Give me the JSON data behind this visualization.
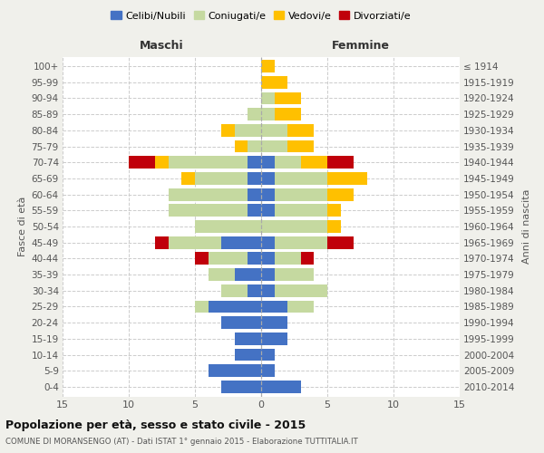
{
  "age_groups": [
    "0-4",
    "5-9",
    "10-14",
    "15-19",
    "20-24",
    "25-29",
    "30-34",
    "35-39",
    "40-44",
    "45-49",
    "50-54",
    "55-59",
    "60-64",
    "65-69",
    "70-74",
    "75-79",
    "80-84",
    "85-89",
    "90-94",
    "95-99",
    "100+"
  ],
  "birth_years": [
    "2010-2014",
    "2005-2009",
    "2000-2004",
    "1995-1999",
    "1990-1994",
    "1985-1989",
    "1980-1984",
    "1975-1979",
    "1970-1974",
    "1965-1969",
    "1960-1964",
    "1955-1959",
    "1950-1954",
    "1945-1949",
    "1940-1944",
    "1935-1939",
    "1930-1934",
    "1925-1929",
    "1920-1924",
    "1915-1919",
    "≤ 1914"
  ],
  "male": {
    "celibi": [
      3,
      4,
      2,
      2,
      3,
      4,
      1,
      2,
      1,
      3,
      0,
      1,
      1,
      1,
      1,
      0,
      0,
      0,
      0,
      0,
      0
    ],
    "coniugati": [
      0,
      0,
      0,
      0,
      0,
      1,
      2,
      2,
      3,
      4,
      5,
      6,
      6,
      4,
      6,
      1,
      2,
      1,
      0,
      0,
      0
    ],
    "vedovi": [
      0,
      0,
      0,
      0,
      0,
      0,
      0,
      0,
      0,
      0,
      0,
      0,
      0,
      1,
      1,
      1,
      1,
      0,
      0,
      0,
      0
    ],
    "divorziati": [
      0,
      0,
      0,
      0,
      0,
      0,
      0,
      0,
      1,
      1,
      0,
      0,
      0,
      0,
      2,
      0,
      0,
      0,
      0,
      0,
      0
    ]
  },
  "female": {
    "nubili": [
      3,
      1,
      1,
      2,
      2,
      2,
      1,
      1,
      1,
      1,
      0,
      1,
      1,
      1,
      1,
      0,
      0,
      0,
      0,
      0,
      0
    ],
    "coniugate": [
      0,
      0,
      0,
      0,
      0,
      2,
      4,
      3,
      2,
      4,
      5,
      4,
      4,
      4,
      2,
      2,
      2,
      1,
      1,
      0,
      0
    ],
    "vedove": [
      0,
      0,
      0,
      0,
      0,
      0,
      0,
      0,
      0,
      0,
      1,
      1,
      2,
      3,
      2,
      2,
      2,
      2,
      2,
      2,
      1
    ],
    "divorziate": [
      0,
      0,
      0,
      0,
      0,
      0,
      0,
      0,
      1,
      2,
      0,
      0,
      0,
      0,
      2,
      0,
      0,
      0,
      0,
      0,
      0
    ]
  },
  "colors": {
    "celibi": "#4472c4",
    "coniugati": "#c5d9a0",
    "vedovi": "#ffc000",
    "divorziati": "#c0000b"
  },
  "xlim": 15,
  "title": "Popolazione per età, sesso e stato civile - 2015",
  "subtitle": "COMUNE DI MORANSENGO (AT) - Dati ISTAT 1° gennaio 2015 - Elaborazione TUTTITALIA.IT",
  "ylabel_left": "Fasce di età",
  "ylabel_right": "Anni di nascita",
  "xlabel_left": "Maschi",
  "xlabel_right": "Femmine",
  "bg_color": "#f0f0eb",
  "plot_bg": "#ffffff",
  "legend_labels": [
    "Celibi/Nubili",
    "Coniugati/e",
    "Vedovi/e",
    "Divorziati/e"
  ]
}
